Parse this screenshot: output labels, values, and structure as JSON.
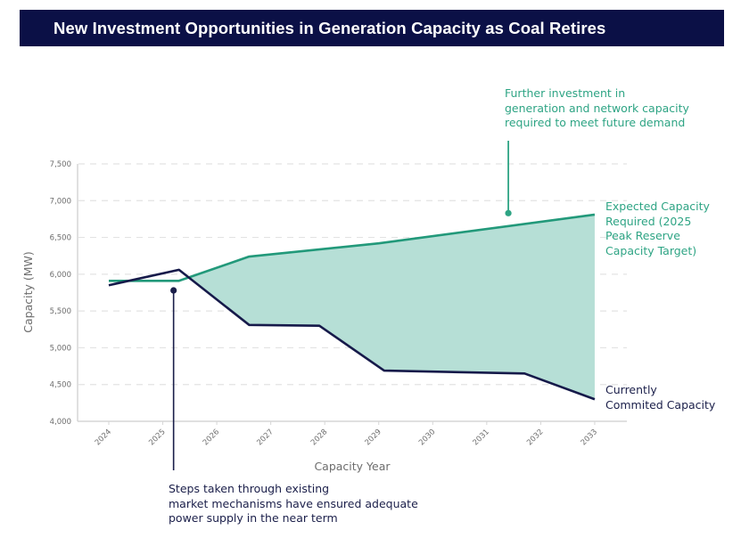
{
  "header": {
    "title": "New Investment Opportunities in Generation Capacity as Coal Retires"
  },
  "colors": {
    "title_bg": "#0b1046",
    "expected": "#22997a",
    "committed": "#161a4a",
    "gap_fill": "#b6dfd6",
    "annotation_green": "#2ea484",
    "annotation_dark": "#1b1f4a"
  },
  "chart_data": {
    "type": "area",
    "title": "New Investment Opportunities in Generation Capacity as Coal Retires",
    "xlabel": "Capacity Year",
    "ylabel": "Capacity (MW)",
    "x_ticks": [
      "2024",
      "2025",
      "2026",
      "2027",
      "2028",
      "2029",
      "2030",
      "2031",
      "2032",
      "2033"
    ],
    "y_ticks": [
      "4,000",
      "4,500",
      "5,000",
      "5,500",
      "6,000",
      "6,500",
      "7,000",
      "7,500"
    ],
    "y_tick_values": [
      4000,
      4500,
      5000,
      5500,
      6000,
      6500,
      7000,
      7500
    ],
    "xlim": [
      2024,
      2033
    ],
    "ylim": [
      4000,
      7500
    ],
    "grid": "horizontal-dashed",
    "series": [
      {
        "name": "Expected Capacity Required (2025 Peak Reserve Capacity Target)",
        "key": "expected",
        "points": [
          [
            2024.0,
            5910
          ],
          [
            2025.3,
            5910
          ],
          [
            2026.6,
            6240
          ],
          [
            2029.0,
            6420
          ],
          [
            2033.0,
            6810
          ]
        ]
      },
      {
        "name": "Currently Commited Capacity",
        "key": "committed",
        "points": [
          [
            2024.0,
            5850
          ],
          [
            2025.3,
            6060
          ],
          [
            2026.6,
            5310
          ],
          [
            2027.9,
            5300
          ],
          [
            2029.1,
            4690
          ],
          [
            2031.7,
            4650
          ],
          [
            2033.0,
            4300
          ]
        ]
      }
    ],
    "shaded_region": "gap between expected and committed capacity from 2025.5 to 2033",
    "labels": {
      "expected": "Expected Capacity\nRequired (2025\nPeak Reserve\nCapacity Target)",
      "committed": "Currently\nCommited Capacity"
    },
    "annotations": [
      {
        "key": "further_investment",
        "text": "Further investment in\ngeneration and network capacity\nrequired to meet future demand",
        "anchor": [
          2031.4,
          6830
        ]
      },
      {
        "key": "steps_taken",
        "text": "Steps taken through existing\nmarket mechanisms have ensured adequate\npower supply in the near term",
        "anchor": [
          2025.2,
          5780
        ]
      }
    ]
  }
}
